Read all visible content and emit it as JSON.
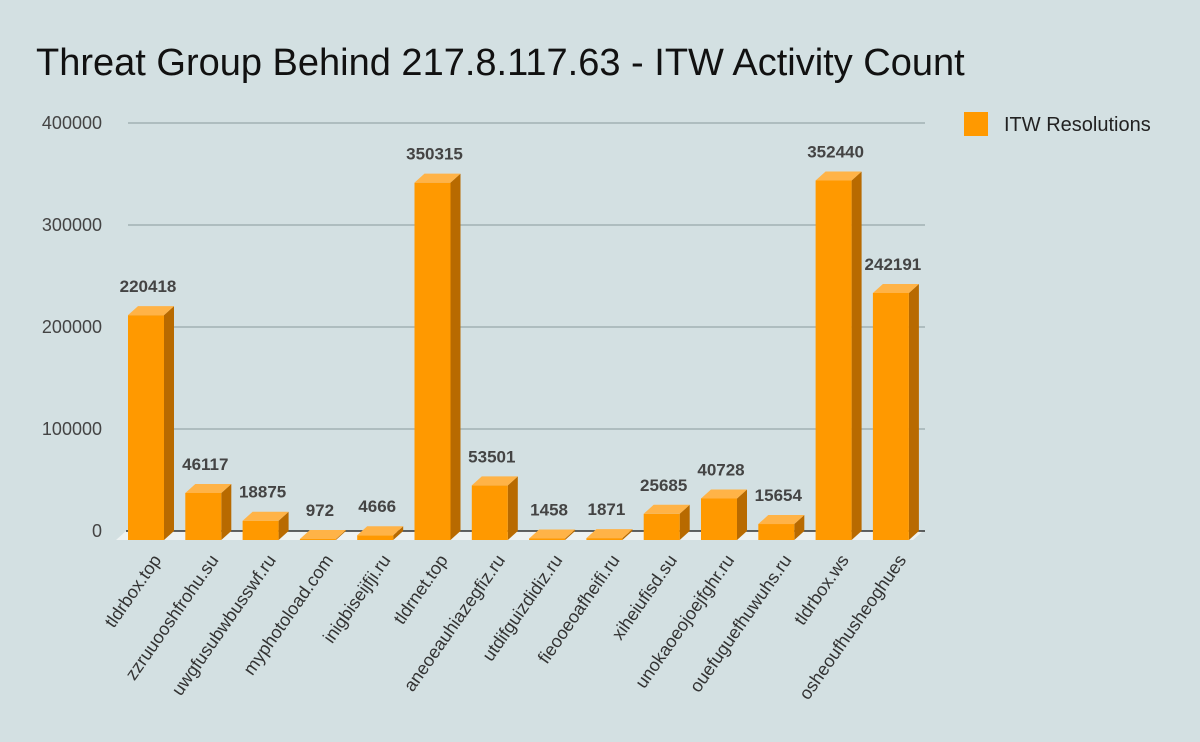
{
  "chart_data": {
    "type": "bar",
    "title": "Threat Group Behind 217.8.117.63 - ITW Activity Count",
    "xlabel": "",
    "ylabel": "",
    "ylim": [
      0,
      400000
    ],
    "yticks": [
      0,
      100000,
      200000,
      300000,
      400000
    ],
    "ytick_labels": [
      "0",
      "100000",
      "200000",
      "300000",
      "400000"
    ],
    "grid": true,
    "legend_position": "top-right",
    "categories": [
      "tldrbox.top",
      "zzruuooshfrohu.su",
      "uwgfusubwbusswf.ru",
      "myphotoload.com",
      "inigbiseijfji.ru",
      "tldrnet.top",
      "aneoeauhiazegfiz.ru",
      "utdifguizdidiz.ru",
      "fieooeoafheifi.ru",
      "xiheiufisd.su",
      "unokaoeojoejfghr.ru",
      "ouefuguefhuwuhs.ru",
      "tldrbox.ws",
      "osheoufhusheoghues"
    ],
    "series": [
      {
        "name": "ITW Resolutions",
        "color": "#ff9900",
        "values": [
          220418,
          46117,
          18875,
          972,
          4666,
          350315,
          53501,
          1458,
          1871,
          25685,
          40728,
          15654,
          352440,
          242191
        ],
        "value_labels": [
          "220418",
          "46117",
          "18875",
          "972",
          "4666",
          "350315",
          "53501",
          "1458",
          "1871",
          "25685",
          "40728",
          "15654",
          "352440",
          "242191"
        ]
      }
    ]
  }
}
